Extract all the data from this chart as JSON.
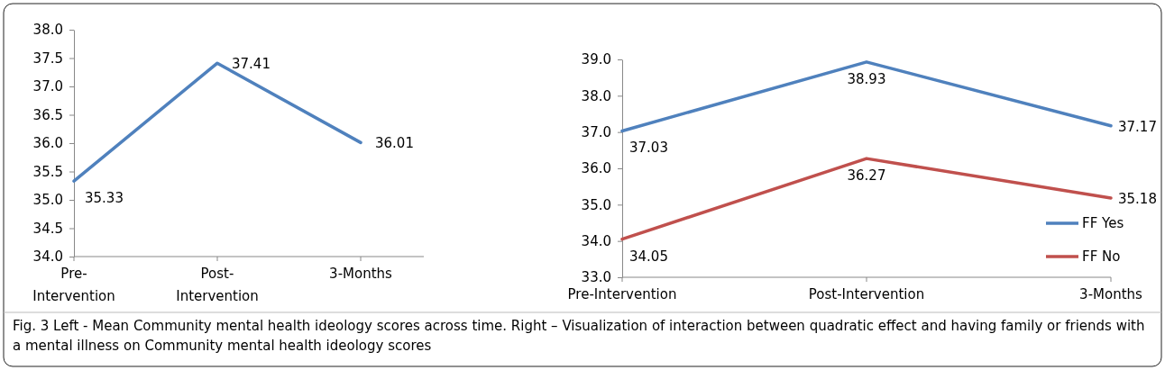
{
  "chart_data": [
    {
      "type": "line",
      "categories": [
        "Pre-\nIntervention",
        "Post-\nIntervention",
        "3-Months"
      ],
      "ylim": [
        34.0,
        38.0
      ],
      "yticks": [
        {
          "value": 34,
          "label": "34.0"
        },
        {
          "value": 34.5,
          "label": "34.5"
        },
        {
          "value": 35,
          "label": "35.0"
        },
        {
          "value": 35.5,
          "label": "35.5"
        },
        {
          "value": 36,
          "label": "36.0"
        },
        {
          "value": 36.5,
          "label": "36.5"
        },
        {
          "value": 37,
          "label": "37.0"
        },
        {
          "value": 37.5,
          "label": "37.5"
        },
        {
          "value": 38,
          "label": "38.0"
        }
      ],
      "grid": false,
      "legend": false,
      "marker": "none",
      "data_labels": true,
      "series": [
        {
          "color": "#4f81bd",
          "values": [
            35.33,
            37.41,
            36.01
          ]
        }
      ],
      "annotations": [
        "Fig. 3 Left - Mean Community mental health ideology scores across time. Right – Visualization of interaction between quadratic effect and having family or friends with a mental illness on Community mental health ideology scores"
      ]
    },
    {
      "type": "line",
      "categories": [
        "Pre-Intervention",
        "Post-Intervention",
        "3-Months"
      ],
      "ylim": [
        33.0,
        39.0
      ],
      "yticks": [
        {
          "value": 33,
          "label": "33.0"
        },
        {
          "value": 34,
          "label": "34.0"
        },
        {
          "value": 35,
          "label": "35.0"
        },
        {
          "value": 36,
          "label": "36.0"
        },
        {
          "value": 37,
          "label": "37.0"
        },
        {
          "value": 38,
          "label": "38.0"
        },
        {
          "value": 39,
          "label": "39.0"
        }
      ],
      "grid": false,
      "legend": "bottom right",
      "marker": "none",
      "data_labels": true,
      "series": [
        {
          "name": "FF Yes",
          "color": "#4f81bd",
          "values": [
            37.03,
            38.93,
            37.17
          ]
        },
        {
          "name": "FF No",
          "color": "#c0504d",
          "values": [
            34.05,
            36.27,
            35.18
          ]
        }
      ]
    }
  ]
}
